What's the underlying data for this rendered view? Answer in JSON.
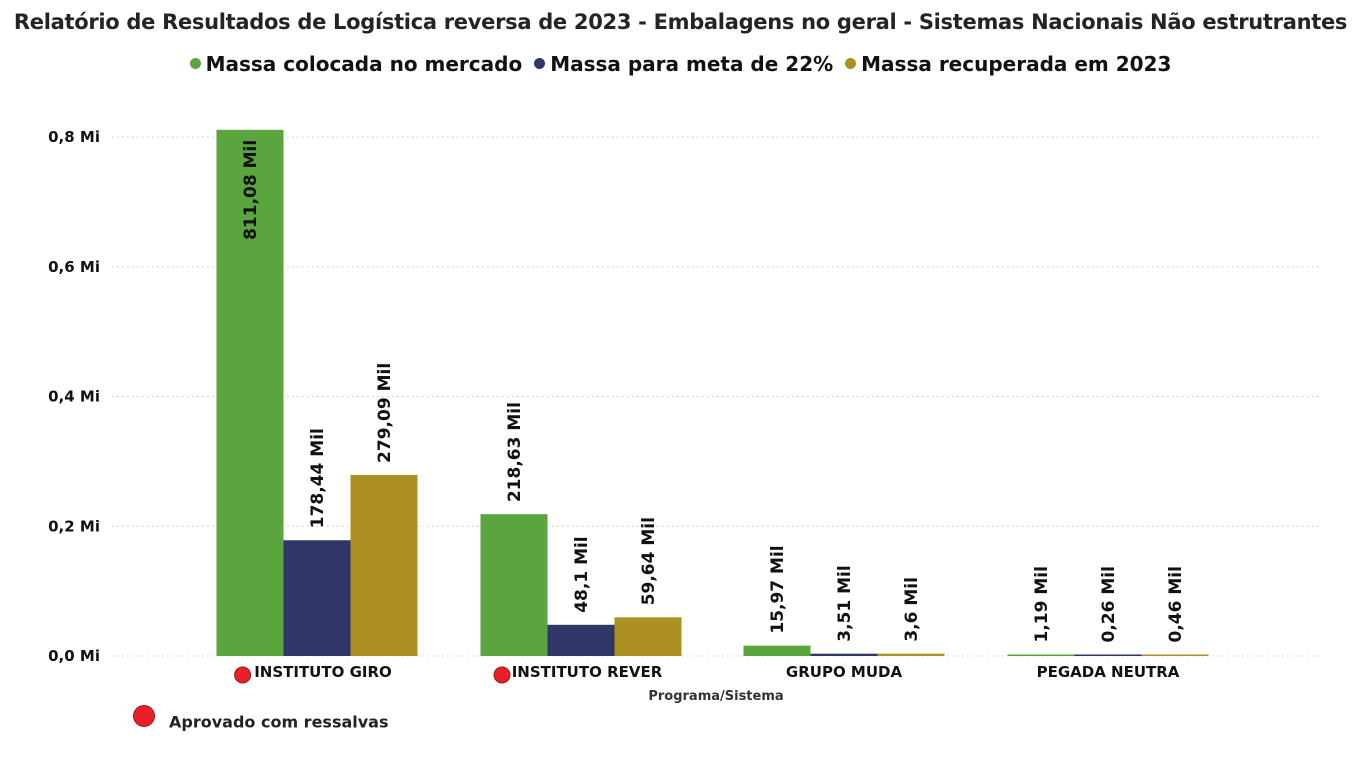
{
  "title": "Relatório de Resultados de Logística reversa de 2023 - Embalagens no geral - Sistemas Nacionais Não estrutrantes",
  "colors": {
    "green": "#5aa53d",
    "navy": "#2e3767",
    "gold": "#ad9022",
    "status_red": "#e8202a"
  },
  "status_legend": {
    "label": "Aprovado com ressalvas",
    "icon": "red-circle"
  },
  "chart_data": {
    "type": "bar",
    "xlabel": "Programa/Sistema",
    "ylabel": "",
    "ylim": [
      0,
      0.8
    ],
    "y_unit": "Mi",
    "y_ticks": [
      {
        "value": 0.0,
        "label": "0,0 Mi"
      },
      {
        "value": 0.2,
        "label": "0,2 Mi"
      },
      {
        "value": 0.4,
        "label": "0,4 Mi"
      },
      {
        "value": 0.6,
        "label": "0,6 Mi"
      },
      {
        "value": 0.8,
        "label": "0,8 Mi"
      }
    ],
    "grid": true,
    "legend_position": "top-center",
    "categories": [
      "INSTITUTO GIRO",
      "INSTITUTO REVER",
      "GRUPO MUDA",
      "PEGADA NEUTRA"
    ],
    "category_status": [
      "Aprovado com ressalvas",
      "Aprovado com ressalvas",
      null,
      null
    ],
    "series": [
      {
        "name": "Massa colocada no mercado",
        "color": "#5aa53d",
        "values": [
          0.81108,
          0.21863,
          0.01597,
          0.00119
        ],
        "labels": [
          "811,08 Mil",
          "218,63 Mil",
          "15,97 Mil",
          "1,19 Mil"
        ]
      },
      {
        "name": "Massa para meta de 22%",
        "color": "#2e3767",
        "values": [
          0.17844,
          0.0481,
          0.00351,
          0.00026
        ],
        "labels": [
          "178,44 Mil",
          "48,1 Mil",
          "3,51 Mil",
          "0,26 Mil"
        ]
      },
      {
        "name": "Massa recuperada em 2023",
        "color": "#ad9022",
        "values": [
          0.27909,
          0.05964,
          0.0036,
          0.00046
        ],
        "labels": [
          "279,09 Mil",
          "59,64 Mil",
          "3,6 Mil",
          "0,46 Mil"
        ]
      }
    ]
  }
}
